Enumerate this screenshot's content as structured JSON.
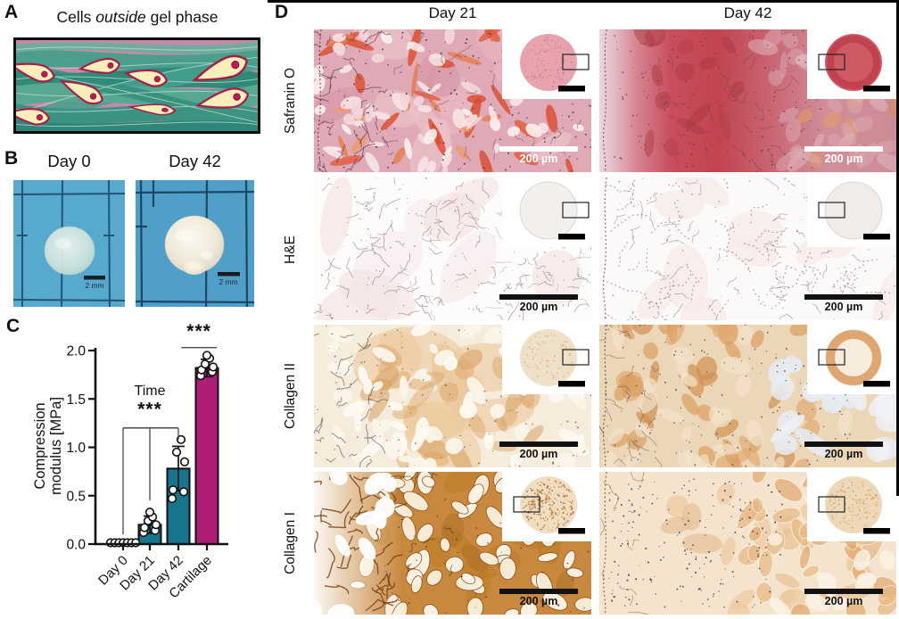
{
  "panels": {
    "a": {
      "label": "A",
      "title_prefix": "Cells ",
      "title_italic": "outside",
      "title_suffix": " gel phase"
    },
    "b": {
      "label": "B",
      "photos": [
        {
          "title": "Day 0",
          "scale_label": "2 mm"
        },
        {
          "title": "Day 42",
          "scale_label": "2 mm"
        }
      ]
    },
    "c": {
      "label": "C"
    },
    "d": {
      "label": "D",
      "columns": [
        "Day 21",
        "Day 42"
      ],
      "rows": [
        "Safranin O",
        "H&E",
        "Collagen II",
        "Collagen I"
      ],
      "scale_label": "200 µm"
    }
  },
  "chart_data": {
    "type": "bar",
    "title": "",
    "categories": [
      "Day 0",
      "Day 21",
      "Day 42",
      "Cartilage"
    ],
    "values": [
      0.01,
      0.2,
      0.78,
      1.82
    ],
    "errors": [
      0.008,
      0.09,
      0.23,
      0.09
    ],
    "points": [
      [
        0.006,
        0.008,
        0.01,
        0.009,
        0.011,
        0.008,
        0.01
      ],
      [
        0.12,
        0.14,
        0.17,
        0.2,
        0.24,
        0.28,
        0.33
      ],
      [
        0.47,
        0.54,
        0.56,
        0.85,
        0.95,
        1.08
      ],
      [
        1.74,
        1.78,
        1.8,
        1.83,
        1.86,
        1.92,
        1.95
      ]
    ],
    "bar_colors": [
      "#17768e",
      "#17768e",
      "#17768e",
      "#b01d77"
    ],
    "xlabel": "",
    "ylabel": "Compression modulus [MPa]",
    "ylabel_lines": [
      "Compression",
      "modulus [MPa]"
    ],
    "ylim": [
      0,
      2.0
    ],
    "yticks": [
      "0.0",
      "0.5",
      "1.0",
      "1.5",
      "2.0"
    ],
    "grid": false,
    "legend": null,
    "annotations": [
      {
        "label": "Time",
        "stars": "***",
        "bracket_y": 1.2,
        "from_cat": 0,
        "to_cat": 2,
        "drops": [
          [
            0,
            0.1
          ],
          [
            1,
            0.45
          ],
          [
            2,
            1.08
          ]
        ],
        "text_cat": 1,
        "stars_y": 1.33,
        "label_y": 1.54
      },
      {
        "label": "",
        "stars": "***",
        "bracket_y": 2.03,
        "from_cat": 2.1,
        "to_cat": 3.35,
        "drops": [],
        "text_cat": 2.72,
        "stars_y": 2.14,
        "label_y": 0
      }
    ]
  }
}
